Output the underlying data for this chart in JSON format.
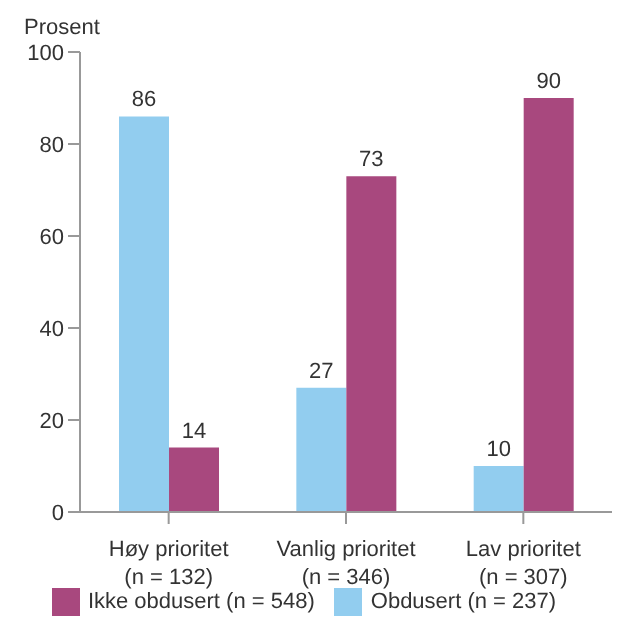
{
  "chart_data": {
    "type": "bar",
    "ylabel": "Prosent",
    "categories": [
      "Høy prioritet\n(n = 132)",
      "Vanlig prioritet\n(n = 346)",
      "Lav prioritet\n(n = 307)"
    ],
    "series": [
      {
        "name": "Obdusert (n = 237)",
        "color": "#92cdef",
        "values": [
          86,
          27,
          10
        ]
      },
      {
        "name": "Ikke obdusert (n = 548)",
        "color": "#a8487e",
        "values": [
          14,
          73,
          90
        ]
      }
    ],
    "ylim": [
      0,
      100
    ],
    "yticks": [
      0,
      20,
      40,
      60,
      80,
      100
    ],
    "grid": false,
    "data_labels": true,
    "legend": "bottom"
  }
}
